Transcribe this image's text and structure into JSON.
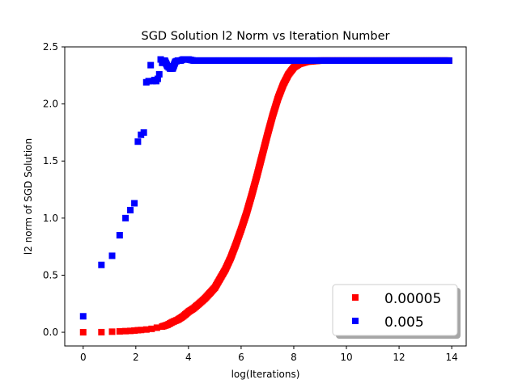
{
  "chart_data": {
    "type": "scatter",
    "title": "SGD Solution l2 Norm vs Iteration Number",
    "xlabel": "log(Iterations)",
    "ylabel": "l2 norm of SGD Solution",
    "xlim": [
      -0.7,
      14.55
    ],
    "ylim": [
      -0.12,
      2.5
    ],
    "xticks": [
      0,
      2,
      4,
      6,
      8,
      10,
      12,
      14
    ],
    "xtick_labels": [
      "0",
      "2",
      "4",
      "6",
      "8",
      "10",
      "12",
      "14"
    ],
    "yticks": [
      0.0,
      0.5,
      1.0,
      1.5,
      2.0,
      2.5
    ],
    "ytick_labels": [
      "0.0",
      "0.5",
      "1.0",
      "1.5",
      "2.0",
      "2.5"
    ],
    "grid": false,
    "legend_position": "lower-right",
    "marker": "square",
    "series": [
      {
        "name": "0.00005",
        "color": "#ff0000",
        "points": [
          [
            0,
            0.0
          ],
          [
            0.693,
            0.001
          ],
          [
            1.099,
            0.005
          ],
          [
            1.386,
            0.008
          ],
          [
            1.609,
            0.01
          ],
          [
            1.792,
            0.012
          ],
          [
            1.946,
            0.015
          ],
          [
            2.079,
            0.018
          ],
          [
            2.2,
            0.02
          ],
          [
            2.4,
            0.024
          ],
          [
            2.6,
            0.03
          ],
          [
            2.8,
            0.04
          ],
          [
            3.0,
            0.05
          ],
          [
            3.2,
            0.065
          ],
          [
            3.4,
            0.09
          ],
          [
            3.6,
            0.11
          ],
          [
            3.8,
            0.14
          ],
          [
            4.0,
            0.18
          ],
          [
            4.2,
            0.21
          ],
          [
            4.4,
            0.25
          ],
          [
            4.6,
            0.29
          ],
          [
            4.8,
            0.34
          ],
          [
            5.0,
            0.39
          ],
          [
            5.2,
            0.47
          ],
          [
            5.4,
            0.55
          ],
          [
            5.6,
            0.65
          ],
          [
            5.8,
            0.77
          ],
          [
            6.0,
            0.9
          ],
          [
            6.2,
            1.04
          ],
          [
            6.4,
            1.2
          ],
          [
            6.6,
            1.37
          ],
          [
            6.8,
            1.55
          ],
          [
            7.0,
            1.73
          ],
          [
            7.2,
            1.9
          ],
          [
            7.4,
            2.05
          ],
          [
            7.6,
            2.17
          ],
          [
            7.8,
            2.26
          ],
          [
            8.0,
            2.32
          ],
          [
            8.2,
            2.35
          ],
          [
            8.5,
            2.37
          ],
          [
            9.0,
            2.38
          ],
          [
            10.0,
            2.38
          ],
          [
            11.0,
            2.38
          ],
          [
            12.0,
            2.38
          ],
          [
            13.0,
            2.38
          ],
          [
            13.9,
            2.38
          ]
        ]
      },
      {
        "name": "0.005",
        "color": "#0000ff",
        "points": [
          [
            0,
            0.14
          ],
          [
            0.693,
            0.59
          ],
          [
            1.099,
            0.67
          ],
          [
            1.386,
            0.85
          ],
          [
            1.609,
            1.0
          ],
          [
            1.792,
            1.07
          ],
          [
            1.946,
            1.13
          ],
          [
            2.079,
            1.67
          ],
          [
            2.197,
            1.73
          ],
          [
            2.303,
            1.75
          ],
          [
            2.398,
            2.19
          ],
          [
            2.485,
            2.2
          ],
          [
            2.565,
            2.34
          ],
          [
            2.639,
            2.2
          ],
          [
            2.708,
            2.21
          ],
          [
            2.773,
            2.2
          ],
          [
            2.833,
            2.22
          ],
          [
            2.89,
            2.26
          ],
          [
            2.944,
            2.39
          ],
          [
            3.0,
            2.36
          ],
          [
            3.1,
            2.38
          ],
          [
            3.2,
            2.33
          ],
          [
            3.3,
            2.31
          ],
          [
            3.4,
            2.31
          ],
          [
            3.5,
            2.37
          ],
          [
            3.6,
            2.38
          ],
          [
            3.7,
            2.38
          ],
          [
            3.8,
            2.39
          ],
          [
            3.9,
            2.39
          ],
          [
            4.0,
            2.39
          ],
          [
            4.2,
            2.38
          ],
          [
            4.5,
            2.38
          ],
          [
            5.0,
            2.38
          ],
          [
            6.0,
            2.38
          ],
          [
            7.0,
            2.38
          ],
          [
            8.0,
            2.38
          ],
          [
            9.0,
            2.38
          ],
          [
            10.0,
            2.38
          ],
          [
            11.0,
            2.38
          ],
          [
            12.0,
            2.38
          ],
          [
            13.0,
            2.38
          ],
          [
            13.9,
            2.38
          ]
        ]
      }
    ]
  }
}
